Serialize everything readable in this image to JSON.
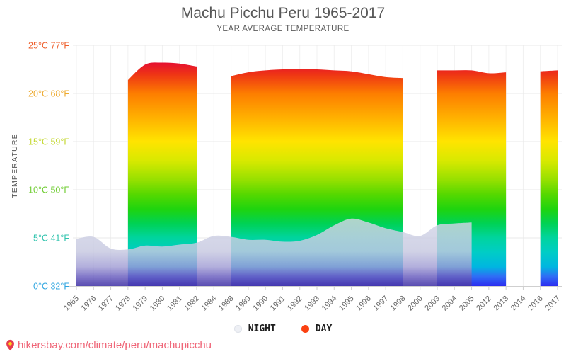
{
  "header": {
    "title": "Machu Picchu Peru 1965-2017",
    "subtitle": "YEAR AVERAGE TEMPERATURE"
  },
  "legend": {
    "night_label": "NIGHT",
    "day_label": "DAY",
    "night_marker_color": "#eef0f5",
    "day_marker_color": "#fb4111"
  },
  "footer": {
    "link_text": "hikersbay.com/climate/peru/machupicchu",
    "link_color": "#ef6577",
    "icon": "map-pin-icon"
  },
  "chart_data": {
    "type": "area",
    "title": "Machu Picchu Peru 1965-2017",
    "subtitle": "YEAR AVERAGE TEMPERATURE",
    "xlabel": "",
    "ylabel": "TEMPERATURE",
    "ylim": [
      0,
      25
    ],
    "grid": true,
    "legend_position": "bottom",
    "categories": [
      1965,
      1976,
      1977,
      1978,
      1979,
      1980,
      1981,
      1982,
      1984,
      1988,
      1989,
      1990,
      1991,
      1992,
      1993,
      1994,
      1995,
      1996,
      1997,
      1998,
      2000,
      2003,
      2004,
      2005,
      2012,
      2013,
      2014,
      2016,
      2017
    ],
    "y_axis": {
      "ticks": [
        {
          "c": 25,
          "label": "25°C 77°F",
          "color": "#ee5f2c"
        },
        {
          "c": 20,
          "label": "20°C 68°F",
          "color": "#edaa2f"
        },
        {
          "c": 15,
          "label": "15°C 59°F",
          "color": "#c4d832"
        },
        {
          "c": 10,
          "label": "10°C 50°F",
          "color": "#70cd33"
        },
        {
          "c": 5,
          "label": "5°C 41°F",
          "color": "#2fc3ad"
        },
        {
          "c": 0,
          "label": "0°C 32°F",
          "color": "#30a6e0"
        }
      ]
    },
    "series": [
      {
        "name": "NIGHT",
        "unit": "°C",
        "values": [
          4.9,
          5.1,
          3.9,
          3.8,
          4.2,
          4.1,
          4.3,
          4.5,
          5.2,
          5.1,
          4.8,
          4.8,
          4.6,
          4.7,
          5.3,
          6.3,
          7.0,
          6.6,
          6.0,
          5.6,
          5.2,
          6.3,
          6.5,
          6.6,
          null,
          null,
          null,
          null,
          null
        ]
      },
      {
        "name": "DAY",
        "unit": "°C",
        "values": [
          null,
          null,
          null,
          21.4,
          23.0,
          23.2,
          23.1,
          22.8,
          null,
          21.8,
          22.2,
          22.4,
          22.5,
          22.5,
          22.5,
          22.4,
          22.3,
          22.0,
          21.7,
          21.6,
          null,
          22.4,
          22.4,
          22.4,
          22.1,
          22.2,
          null,
          22.3,
          22.4
        ]
      }
    ],
    "day_gradient": [
      {
        "offset": 0,
        "color": "#e40a35"
      },
      {
        "offset": 0.06,
        "color": "#ee3415"
      },
      {
        "offset": 0.145,
        "color": "#fd7d00"
      },
      {
        "offset": 0.252,
        "color": "#ffb000"
      },
      {
        "offset": 0.359,
        "color": "#ffe400"
      },
      {
        "offset": 0.444,
        "color": "#d8e900"
      },
      {
        "offset": 0.53,
        "color": "#95e000"
      },
      {
        "offset": 0.594,
        "color": "#55d800"
      },
      {
        "offset": 0.658,
        "color": "#1fd40e"
      },
      {
        "offset": 0.722,
        "color": "#00d254"
      },
      {
        "offset": 0.786,
        "color": "#00d49e"
      },
      {
        "offset": 0.85,
        "color": "#00cdc6"
      },
      {
        "offset": 0.915,
        "color": "#00b6e0"
      },
      {
        "offset": 0.957,
        "color": "#2f6ef5"
      },
      {
        "offset": 1,
        "color": "#2b2cf0"
      }
    ],
    "night_gradient": [
      {
        "offset": 0,
        "color": "rgba(213,215,232,0.82)"
      },
      {
        "offset": 0.5,
        "color": "rgba(198,200,224,0.82)"
      },
      {
        "offset": 0.72,
        "color": "rgba(160,156,212,0.80)"
      },
      {
        "offset": 0.87,
        "color": "rgba(104,92,190,0.84)"
      },
      {
        "offset": 1,
        "color": "rgba(70,56,168,0.90)"
      }
    ]
  }
}
